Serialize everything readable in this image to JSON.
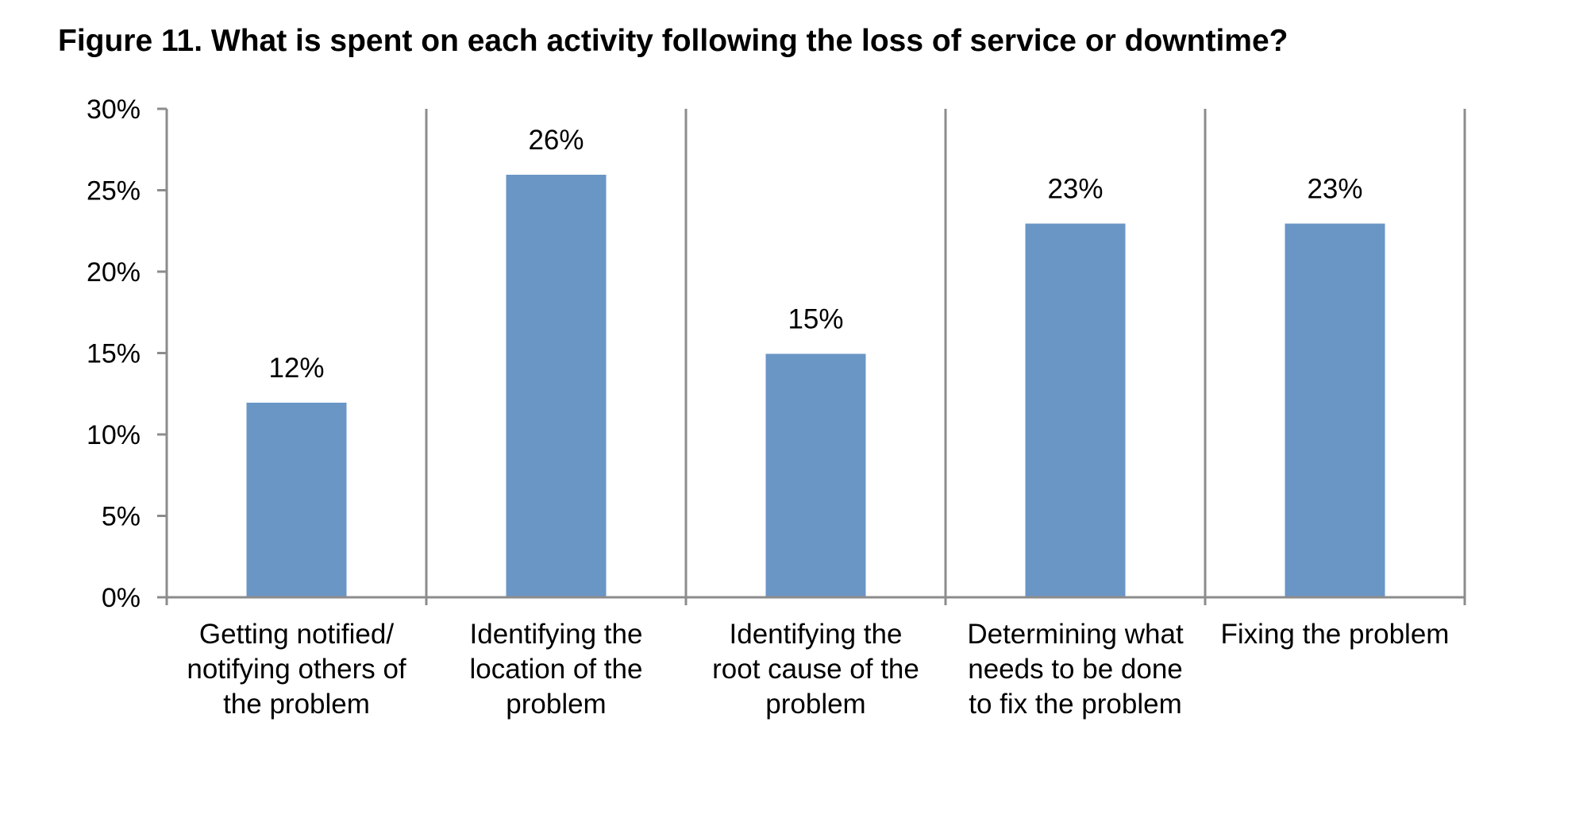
{
  "chart_data": {
    "type": "bar",
    "title": "Figure 11. What is spent on each activity following the loss of service or downtime?",
    "xlabel": "",
    "ylabel": "",
    "categories": [
      "Getting notified/ notifying others of the problem",
      "Identifying the location of the problem",
      "Identifying the root cause of the problem",
      "Determining what needs to be done to fix the problem",
      "Fixing the problem"
    ],
    "category_lines": [
      [
        "Getting notified/",
        "notifying others of",
        "the problem"
      ],
      [
        "Identifying the",
        "location of the",
        "problem"
      ],
      [
        "Identifying the",
        "root cause of the",
        "problem"
      ],
      [
        "Determining what",
        "needs to be done",
        "to fix the problem"
      ],
      [
        "Fixing the problem"
      ]
    ],
    "values": [
      12,
      26,
      15,
      23,
      23
    ],
    "value_labels": [
      "12%",
      "26%",
      "15%",
      "23%",
      "23%"
    ],
    "ylim": [
      0,
      30
    ],
    "yticks": [
      0,
      5,
      10,
      15,
      20,
      25,
      30
    ],
    "ytick_labels": [
      "0%",
      "5%",
      "10%",
      "15%",
      "20%",
      "25%",
      "30%"
    ],
    "grid": "vertical category separators",
    "legend": "none",
    "colors": {
      "bar": "#6A96C6",
      "axis": "#8C8C8C"
    }
  }
}
